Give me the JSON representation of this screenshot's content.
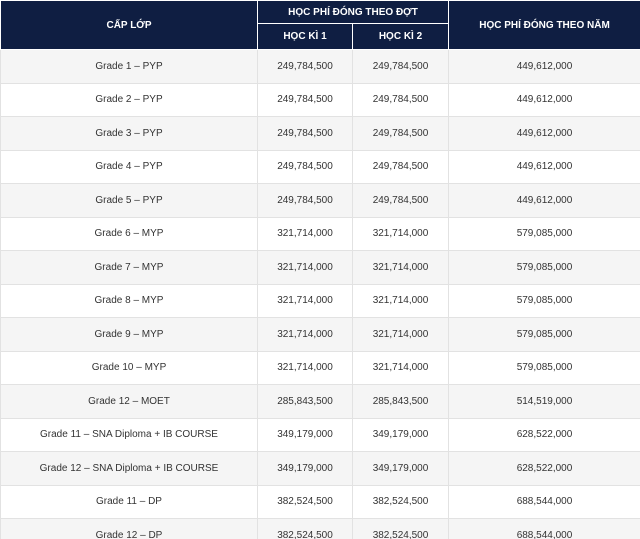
{
  "header": {
    "grade": "CẤP LỚP",
    "per_term": "HỌC PHÍ ĐÓNG THEO ĐỢT",
    "term1": "HỌC KÌ 1",
    "term2": "HỌC KÌ 2",
    "per_year": "HỌC PHÍ ĐÓNG THEO NĂM"
  },
  "rows": [
    {
      "grade": "Grade 1 – PYP",
      "term1": "249,784,500",
      "term2": "249,784,500",
      "year": "449,612,000"
    },
    {
      "grade": "Grade 2 – PYP",
      "term1": "249,784,500",
      "term2": "249,784,500",
      "year": "449,612,000"
    },
    {
      "grade": "Grade 3 – PYP",
      "term1": "249,784,500",
      "term2": "249,784,500",
      "year": "449,612,000"
    },
    {
      "grade": "Grade 4 – PYP",
      "term1": "249,784,500",
      "term2": "249,784,500",
      "year": "449,612,000"
    },
    {
      "grade": "Grade 5 – PYP",
      "term1": "249,784,500",
      "term2": "249,784,500",
      "year": "449,612,000"
    },
    {
      "grade": "Grade 6 – MYP",
      "term1": "321,714,000",
      "term2": "321,714,000",
      "year": "579,085,000"
    },
    {
      "grade": "Grade 7 – MYP",
      "term1": "321,714,000",
      "term2": "321,714,000",
      "year": "579,085,000"
    },
    {
      "grade": "Grade 8 – MYP",
      "term1": "321,714,000",
      "term2": "321,714,000",
      "year": "579,085,000"
    },
    {
      "grade": "Grade 9 – MYP",
      "term1": "321,714,000",
      "term2": "321,714,000",
      "year": "579,085,000"
    },
    {
      "grade": "Grade 10 – MYP",
      "term1": "321,714,000",
      "term2": "321,714,000",
      "year": "579,085,000"
    },
    {
      "grade": "Grade 12 – MOET",
      "term1": "285,843,500",
      "term2": "285,843,500",
      "year": "514,519,000"
    },
    {
      "grade": "Grade 11 – SNA Diploma + IB COURSE",
      "term1": "349,179,000",
      "term2": "349,179,000",
      "year": "628,522,000"
    },
    {
      "grade": "Grade 12 – SNA Diploma + IB COURSE",
      "term1": "349,179,000",
      "term2": "349,179,000",
      "year": "628,522,000"
    },
    {
      "grade": "Grade 11 – DP",
      "term1": "382,524,500",
      "term2": "382,524,500",
      "year": "688,544,000"
    },
    {
      "grade": "Grade 12 – DP",
      "term1": "382,524,500",
      "term2": "382,524,500",
      "year": "688,544,000"
    }
  ]
}
